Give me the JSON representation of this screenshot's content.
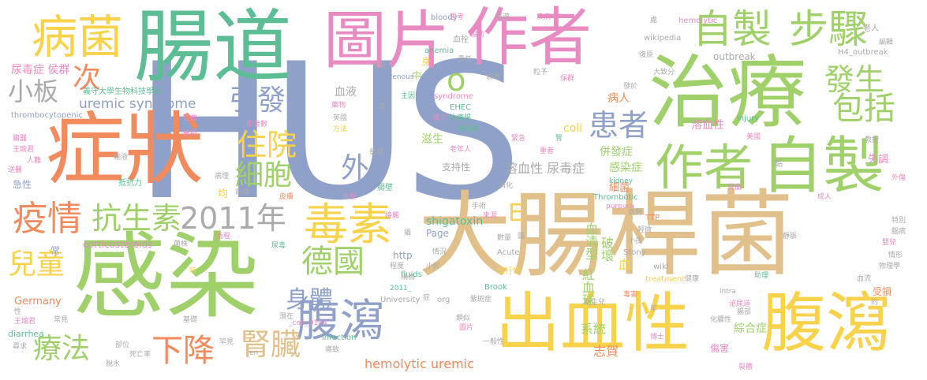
{
  "colors": {
    "green": "#9fd06a",
    "teal": "#5dbd95",
    "pink": "#e88bc2",
    "orange": "#f18b5e",
    "blue": "#8fa1c8",
    "yellow": "#f8d24a",
    "tan": "#e2c08c",
    "gray": "#aaaaaa"
  },
  "words": [
    {
      "text": "HUS",
      "color": "blue",
      "bind_name": "hus"
    },
    {
      "text": "感染",
      "color": "green"
    },
    {
      "text": "大腸",
      "color": "tan"
    },
    {
      "text": "桿菌",
      "color": "tan"
    },
    {
      "text": "症狀",
      "color": "orange"
    },
    {
      "text": "腸道",
      "color": "teal"
    },
    {
      "text": "圖片",
      "color": "pink"
    },
    {
      "text": "作者",
      "color": "pink"
    },
    {
      "text": "治療",
      "color": "green"
    },
    {
      "text": "出血性",
      "color": "yellow"
    },
    {
      "text": "腹瀉",
      "color": "yellow"
    },
    {
      "text": "病菌",
      "color": "yellow"
    },
    {
      "text": "自製",
      "color": "green"
    },
    {
      "text": "步驟",
      "color": "green"
    },
    {
      "text": "作者",
      "color": "green"
    },
    {
      "text": "自製",
      "color": "green"
    },
    {
      "text": "毒素",
      "color": "yellow"
    },
    {
      "text": "疫情",
      "color": "orange"
    },
    {
      "text": "抗生素",
      "color": "green"
    },
    {
      "text": "2011年",
      "color": "gray"
    },
    {
      "text": "德國",
      "color": "green"
    },
    {
      "text": "腹瀉",
      "color": "blue"
    },
    {
      "text": "身體",
      "color": "blue"
    },
    {
      "text": "腎臟",
      "color": "tan"
    },
    {
      "text": "下降",
      "color": "orange"
    },
    {
      "text": "療法",
      "color": "green"
    },
    {
      "text": "兒童",
      "color": "yellow"
    },
    {
      "text": "小板",
      "color": "gray"
    },
    {
      "text": "次",
      "color": "orange"
    },
    {
      "text": "引發",
      "color": "blue"
    },
    {
      "text": "住院",
      "color": "yellow"
    },
    {
      "text": "細胞",
      "color": "green"
    },
    {
      "text": "外",
      "color": "blue"
    },
    {
      "text": "患者",
      "color": "blue"
    },
    {
      "text": "發生",
      "color": "green"
    },
    {
      "text": "包括",
      "color": "green"
    },
    {
      "text": "o",
      "color": "green"
    },
    {
      "text": "E",
      "color": "yellow"
    },
    {
      "text": "uremic syndrome",
      "color": "blue"
    },
    {
      "text": "hemolytic uremic",
      "color": "orange"
    },
    {
      "text": "溶血性 尿毒症",
      "color": "gray"
    },
    {
      "text": "shigatoxin",
      "color": "teal"
    },
    {
      "text": "血清型",
      "color": "green"
    },
    {
      "text": "破壞",
      "color": "green"
    },
    {
      "text": "紅血球",
      "color": "green"
    },
    {
      "text": "系統",
      "color": "green"
    },
    {
      "text": "綜合症",
      "color": "green"
    },
    {
      "text": "志賀",
      "color": "orange"
    },
    {
      "text": "感染症",
      "color": "green"
    },
    {
      "text": "併發症",
      "color": "green"
    },
    {
      "text": "溶血性",
      "color": "pink"
    },
    {
      "text": "病人",
      "color": "orange"
    },
    {
      "text": "細菌",
      "color": "orange"
    },
    {
      "text": "尿毒症 侯群",
      "color": "pink"
    },
    {
      "text": "義守大學生物科技學系",
      "color": "teal"
    },
    {
      "text": "thrombocytopenic",
      "color": "blue"
    },
    {
      "text": "corticosteroids",
      "color": "pink"
    },
    {
      "text": "Germany",
      "color": "orange"
    },
    {
      "text": "diarrhea",
      "color": "teal"
    },
    {
      "text": "outbreak",
      "color": "gray"
    },
    {
      "text": "H4_outbreak",
      "color": "gray"
    },
    {
      "text": "hemolytic",
      "color": "pink"
    },
    {
      "text": "wikipedia",
      "color": "gray"
    },
    {
      "text": "bloody",
      "color": "blue"
    },
    {
      "text": "anemia",
      "color": "teal"
    },
    {
      "text": "venous",
      "color": "blue"
    },
    {
      "text": "syndrome",
      "color": "pink"
    },
    {
      "text": "EHEC",
      "color": "teal"
    },
    {
      "text": "coli",
      "color": "yellow"
    },
    {
      "text": "Page",
      "color": "blue"
    },
    {
      "text": "http",
      "color": "blue"
    },
    {
      "text": "fluids",
      "color": "teal"
    },
    {
      "text": "University",
      "color": "gray"
    },
    {
      "text": "2011_",
      "color": "teal"
    },
    {
      "text": "org",
      "color": "gray"
    },
    {
      "text": "_coli_O104",
      "color": "pink"
    },
    {
      "text": "infection",
      "color": "teal"
    },
    {
      "text": "en",
      "color": "gray"
    },
    {
      "text": "Brook",
      "color": "teal"
    },
    {
      "text": "Acute",
      "color": "gray"
    },
    {
      "text": "Stony",
      "color": "gray"
    },
    {
      "text": "wiki",
      "color": "gray"
    },
    {
      "text": "treatment",
      "color": "yellow"
    },
    {
      "text": "TTP",
      "color": "orange"
    },
    {
      "text": "purpura",
      "color": "pink"
    },
    {
      "text": "kidney",
      "color": "teal"
    },
    {
      "text": "Thrombotic",
      "color": "teal"
    },
    {
      "text": "intra",
      "color": "gray"
    },
    {
      "text": "injury",
      "color": "teal"
    },
    {
      "text": "血",
      "color": "yellow"
    },
    {
      "text": "血液",
      "color": "gray"
    },
    {
      "text": "血栓",
      "color": "gray"
    },
    {
      "text": "身",
      "color": "yellow"
    },
    {
      "text": "中",
      "color": "green"
    },
    {
      "text": "責任",
      "color": "gray"
    },
    {
      "text": "衰竭",
      "color": "gray"
    },
    {
      "text": "粒予",
      "color": "gray"
    },
    {
      "text": "保群",
      "color": "pink"
    },
    {
      "text": "發於",
      "color": "gray"
    },
    {
      "text": "大致分",
      "color": "gray"
    },
    {
      "text": "復原",
      "color": "gray"
    },
    {
      "text": "老人",
      "color": "gray"
    },
    {
      "text": "編輯",
      "color": "gray"
    },
    {
      "text": "思考",
      "color": "pink"
    },
    {
      "text": "旅遊",
      "color": "gray"
    },
    {
      "text": "疾病",
      "color": "pink"
    },
    {
      "text": "處",
      "color": "gray"
    },
    {
      "text": "炎症",
      "color": "gray"
    },
    {
      "text": "主因",
      "color": "teal"
    },
    {
      "text": "藥物",
      "color": "pink"
    },
    {
      "text": "高",
      "color": "gray"
    },
    {
      "text": "英國",
      "color": "gray"
    },
    {
      "text": "方法",
      "color": "yellow"
    },
    {
      "text": "減少",
      "color": "pink"
    },
    {
      "text": "治療腸",
      "color": "teal"
    },
    {
      "text": "類固醇",
      "color": "teal"
    },
    {
      "text": "緊急",
      "color": "pink"
    },
    {
      "text": "老年人",
      "color": "pink"
    },
    {
      "text": "重者",
      "color": "pink"
    },
    {
      "text": "滋生",
      "color": "green"
    },
    {
      "text": "支持性",
      "color": "gray"
    },
    {
      "text": "發現",
      "color": "gray"
    },
    {
      "text": "消化",
      "color": "gray"
    },
    {
      "text": "美國",
      "color": "pink"
    },
    {
      "text": "教授",
      "color": "gray"
    },
    {
      "text": "失調",
      "color": "pink"
    },
    {
      "text": "外傷",
      "color": "pink"
    },
    {
      "text": "黏",
      "color": "gray"
    },
    {
      "text": "性血",
      "color": "pink"
    },
    {
      "text": "醫師",
      "color": "pink"
    },
    {
      "text": "患者數",
      "color": "pink"
    },
    {
      "text": "臟器",
      "color": "pink"
    },
    {
      "text": "王瑜君",
      "color": "pink"
    },
    {
      "text": "人難",
      "color": "pink"
    },
    {
      "text": "送醫",
      "color": "pink"
    },
    {
      "text": "急性",
      "color": "blue"
    },
    {
      "text": "抵抗力",
      "color": "teal"
    },
    {
      "text": "輸液",
      "color": "gray"
    },
    {
      "text": "病理",
      "color": "gray"
    },
    {
      "text": "均",
      "color": "yellow"
    },
    {
      "text": "病徵",
      "color": "gray"
    },
    {
      "text": "皮膚",
      "color": "orange"
    },
    {
      "text": "血壓",
      "color": "pink"
    },
    {
      "text": "腸壁",
      "color": "teal"
    },
    {
      "text": "手術",
      "color": "gray"
    },
    {
      "text": "來源",
      "color": "pink"
    },
    {
      "text": "過程",
      "color": "pink"
    },
    {
      "text": "尿毒",
      "color": "teal"
    },
    {
      "text": "菌株",
      "color": "gray"
    },
    {
      "text": "常",
      "color": "blue"
    },
    {
      "text": "時",
      "color": "yellow"
    },
    {
      "text": "程度",
      "color": "gray"
    },
    {
      "text": "性",
      "color": "gray"
    },
    {
      "text": "王瑜君",
      "color": "pink"
    },
    {
      "text": "常見",
      "color": "gray"
    },
    {
      "text": "基礎",
      "color": "gray"
    },
    {
      "text": "潛在",
      "color": "gray"
    },
    {
      "text": "尋求",
      "color": "gray"
    },
    {
      "text": "部位",
      "color": "gray"
    },
    {
      "text": "死亡率",
      "color": "gray"
    },
    {
      "text": "脫水",
      "color": "gray"
    },
    {
      "text": "罕見",
      "color": "gray"
    },
    {
      "text": "導致",
      "color": "gray"
    },
    {
      "text": "情況",
      "color": "gray"
    },
    {
      "text": "小於",
      "color": "gray"
    },
    {
      "text": "稱為",
      "color": "gray"
    },
    {
      "text": "一般性",
      "color": "gray"
    },
    {
      "text": "類似",
      "color": "gray"
    },
    {
      "text": "紫斑症",
      "color": "gray"
    },
    {
      "text": "流行性",
      "color": "yellow"
    },
    {
      "text": "數量",
      "color": "gray"
    },
    {
      "text": "圖片",
      "color": "pink"
    },
    {
      "text": "圖",
      "color": "gray"
    },
    {
      "text": "腎",
      "color": "teal"
    },
    {
      "text": "健康",
      "color": "gray"
    },
    {
      "text": "毒害",
      "color": "orange"
    },
    {
      "text": "年",
      "color": "gray"
    },
    {
      "text": "新生兒",
      "color": "gray"
    },
    {
      "text": "博士",
      "color": "pink"
    },
    {
      "text": "傷害",
      "color": "pink"
    },
    {
      "text": "裂體",
      "color": "pink"
    },
    {
      "text": "化膿性",
      "color": "gray"
    },
    {
      "text": "腸部",
      "color": "gray"
    },
    {
      "text": "泌尿道",
      "color": "pink"
    },
    {
      "text": "助理",
      "color": "teal"
    },
    {
      "text": "血流",
      "color": "gray"
    },
    {
      "text": "受損",
      "color": "orange"
    },
    {
      "text": "物理學",
      "color": "gray"
    },
    {
      "text": "情形",
      "color": "gray"
    },
    {
      "text": "嬰兒",
      "color": "pink"
    },
    {
      "text": "腦病",
      "color": "gray"
    },
    {
      "text": "特別",
      "color": "gray"
    },
    {
      "text": "靜脈",
      "color": "gray"
    },
    {
      "text": "成人",
      "color": "pink"
    },
    {
      "text": "貧血",
      "color": "pink"
    },
    {
      "text": "病例",
      "color": "gray"
    },
    {
      "text": "輕微",
      "color": "gray"
    },
    {
      "text": "小孩",
      "color": "gray"
    },
    {
      "text": "約",
      "color": "gray"
    },
    {
      "text": "接觸",
      "color": "pink"
    },
    {
      "text": "協助",
      "color": "pink"
    },
    {
      "text": "症",
      "color": "gray"
    },
    {
      "text": "攝",
      "color": "gray"
    }
  ]
}
